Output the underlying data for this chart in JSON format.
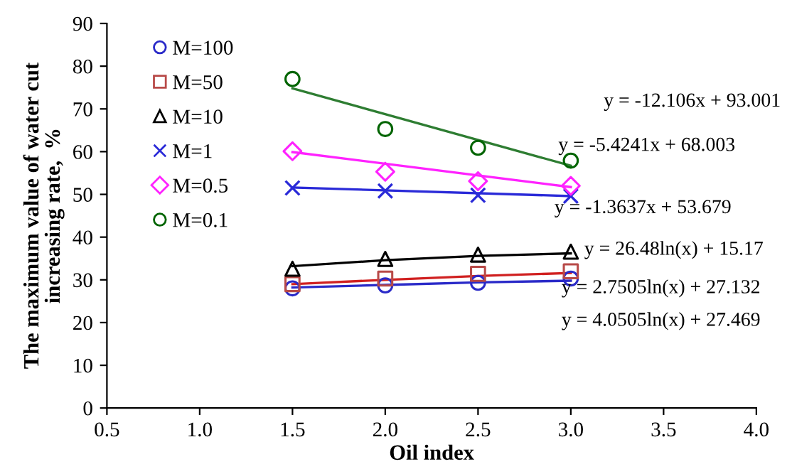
{
  "chart_data": {
    "type": "scatter",
    "xlabel": "Oil index",
    "ylabel": "The maximum value of water cut\nincreasing rate,  %",
    "xlim": [
      0.5,
      4.0
    ],
    "ylim": [
      0,
      90
    ],
    "xticks": [
      {
        "value": 0.5,
        "label": "0.5"
      },
      {
        "value": 1,
        "label": "1.0"
      },
      {
        "value": 1.5,
        "label": "1.5"
      },
      {
        "value": 2,
        "label": "2.0"
      },
      {
        "value": 2.5,
        "label": "2.5"
      },
      {
        "value": 3,
        "label": "3.0"
      },
      {
        "value": 3.5,
        "label": "3.5"
      },
      {
        "value": 4,
        "label": "4.0"
      }
    ],
    "yticks": [
      0,
      10,
      20,
      30,
      40,
      50,
      60,
      70,
      80,
      90
    ],
    "grid": false,
    "legend": "top left",
    "series": [
      {
        "name": "M=100",
        "color": "#2a2ac8",
        "marker": "circle",
        "x": [
          1.5,
          2,
          2.5,
          3
        ],
        "values": [
          28,
          28.7,
          29.3,
          30.3
        ]
      },
      {
        "name": "M=50",
        "color": "#b84a48",
        "marker": "square",
        "x": [
          1.5,
          2,
          2.5,
          3
        ],
        "values": [
          29,
          30.3,
          31.4,
          32
        ]
      },
      {
        "name": "M=10",
        "color": "#000000",
        "marker": "triangle",
        "x": [
          1.5,
          2,
          2.5,
          3
        ],
        "values": [
          32.6,
          34.9,
          35.9,
          36.6
        ]
      },
      {
        "name": "M=1",
        "color": "#2a2ad8",
        "marker": "cross",
        "x": [
          1.5,
          2,
          2.5,
          3
        ],
        "values": [
          51.5,
          50.8,
          49.8,
          49.6
        ]
      },
      {
        "name": "M=0.5",
        "color": "#ff22ff",
        "marker": "diamond",
        "x": [
          1.5,
          2,
          2.5,
          3
        ],
        "values": [
          60.1,
          55.3,
          53.1,
          52
        ]
      },
      {
        "name": "M=0.1",
        "color": "#006400",
        "marker": "circle",
        "x": [
          1.5,
          2,
          2.5,
          3
        ],
        "values": [
          77,
          65.3,
          60.9,
          57.9
        ]
      },
      {
        "type": "line",
        "color": "#2a2ac8",
        "x": [
          1.5,
          2,
          2.5,
          3
        ],
        "values": [
          28.2,
          28.8,
          29.4,
          29.8
        ]
      },
      {
        "type": "line",
        "color": "#d02020",
        "x": [
          1.5,
          2,
          2.5,
          3
        ],
        "values": [
          29,
          30,
          30.9,
          31.6
        ]
      },
      {
        "type": "line",
        "color": "#000000",
        "x": [
          1.5,
          2,
          2.5,
          3
        ],
        "values": [
          33.2,
          34.6,
          35.6,
          36.2
        ]
      },
      {
        "type": "line",
        "color": "#2a2ad8",
        "x": [
          1.5,
          3
        ],
        "values": [
          51.6,
          49.6
        ]
      },
      {
        "type": "line",
        "color": "#ff22ff",
        "x": [
          1.5,
          3
        ],
        "values": [
          59.9,
          51.7
        ]
      },
      {
        "type": "line",
        "color": "#2e7d32",
        "x": [
          1.5,
          3
        ],
        "values": [
          74.8,
          56.7
        ]
      }
    ],
    "annotations": [
      "y = -12.106x + 93.001",
      "y = -5.4241x + 68.003",
      "y = -1.3637x + 53.679",
      "y = 26.48ln(x) + 15.17",
      "y = 2.7505ln(x) + 27.132",
      "y = 4.0505ln(x) + 27.469"
    ]
  }
}
